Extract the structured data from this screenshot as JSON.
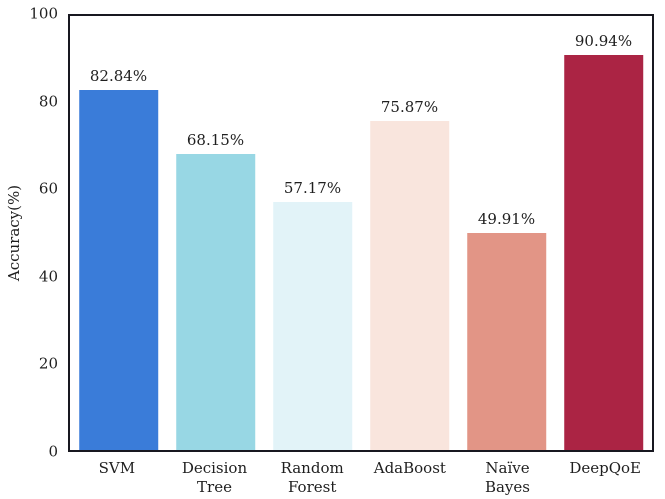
{
  "chart_data": {
    "type": "bar",
    "title": "",
    "categories": [
      "SVM",
      "Decision Tree",
      "Random Forest",
      "AdaBoost",
      "Naïve Bayes",
      "DeepQoE"
    ],
    "category_lines": [
      [
        "SVM"
      ],
      [
        "Decision",
        "Tree"
      ],
      [
        "Random",
        "Forest"
      ],
      [
        "AdaBoost"
      ],
      [
        "Naïve",
        "Bayes"
      ],
      [
        "DeepQoE"
      ]
    ],
    "values": [
      82.84,
      68.15,
      57.17,
      75.87,
      49.91,
      90.94
    ],
    "value_labels": [
      "82.84%",
      "68.15%",
      "57.17%",
      "75.87%",
      "49.91%",
      "90.94%"
    ],
    "bar_colors": [
      "#3a7cd9",
      "#98d7e4",
      "#e2f3f8",
      "#f9e5dd",
      "#e29586",
      "#ab2444"
    ],
    "xlabel": "",
    "ylabel": "Accuracy(%)",
    "ylim": [
      0,
      100
    ],
    "yticks": [
      0,
      20,
      40,
      60,
      80,
      100
    ],
    "grid": false,
    "legend": null,
    "layout": {
      "frame": "full-box",
      "tick_marks": false
    },
    "axis_color": "#181820",
    "text_color": "#1f1f1f"
  }
}
